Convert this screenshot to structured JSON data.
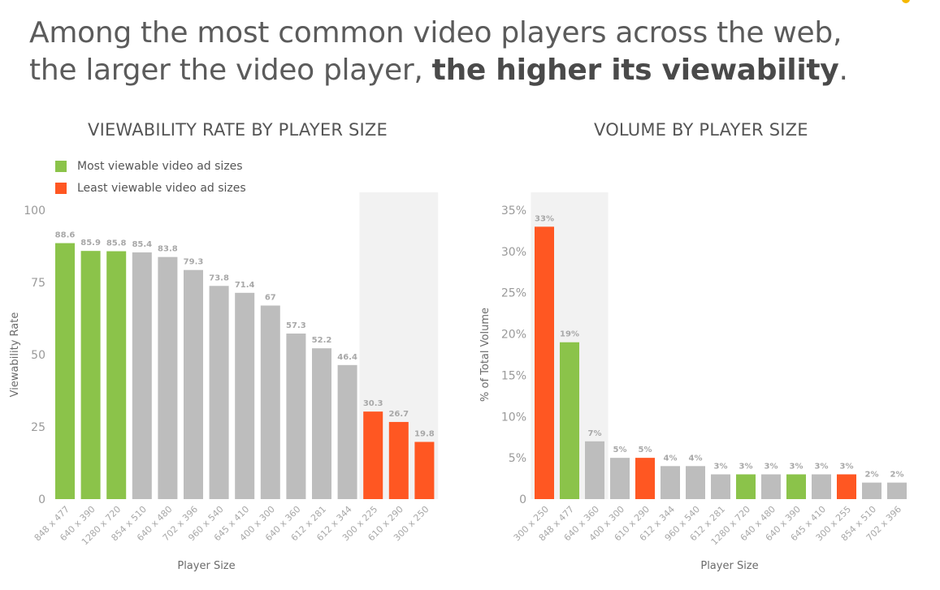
{
  "headline": {
    "line1": "Among the most common video players across the web,",
    "line2_prefix": "the larger the video player, ",
    "line2_bold": "the higher its viewability",
    "line2_suffix": "."
  },
  "legend": {
    "green_label": "Most viewable video ad sizes",
    "red_label": "Least viewable video ad sizes"
  },
  "colors": {
    "green": "#8bc34a",
    "red": "#ff5722",
    "gray": "#bdbdbd",
    "highlight_bg": "#f2f2f2"
  },
  "chart_data": [
    {
      "type": "bar",
      "title": "VIEWABILITY RATE BY PLAYER SIZE",
      "xlabel": "Player Size",
      "ylabel": "Viewability Rate",
      "ylim": [
        0,
        100
      ],
      "yticks": [
        "0",
        "25",
        "50",
        "75",
        "100"
      ],
      "categories": [
        "848 x 477",
        "640 x 390",
        "1280 x 720",
        "854 x 510",
        "640 x 480",
        "702 x 396",
        "960 x 540",
        "645 x 410",
        "400 x 300",
        "640 x 360",
        "612 x 281",
        "612 x 344",
        "300 x 225",
        "610 x 290",
        "300 x 250"
      ],
      "values": [
        88.6,
        85.9,
        85.8,
        85.4,
        83.8,
        79.3,
        73.8,
        71.4,
        67,
        57.3,
        52.2,
        46.4,
        30.3,
        26.7,
        19.8
      ],
      "value_labels": [
        "88.6",
        "85.9",
        "85.8",
        "85.4",
        "83.8",
        "79.3",
        "73.8",
        "71.4",
        "67",
        "57.3",
        "52.2",
        "46.4",
        "30.3",
        "26.7",
        "19.8"
      ],
      "bar_colors": [
        "green",
        "green",
        "green",
        "gray",
        "gray",
        "gray",
        "gray",
        "gray",
        "gray",
        "gray",
        "gray",
        "gray",
        "red",
        "red",
        "red"
      ],
      "highlight_categories": [
        "300 x 225",
        "610 x 290",
        "300 x 250"
      ],
      "grid": false
    },
    {
      "type": "bar",
      "title": "VOLUME BY PLAYER SIZE",
      "xlabel": "Player Size",
      "ylabel": "% of Total Volume",
      "ylim": [
        0,
        35
      ],
      "yticks": [
        "0",
        "5%",
        "10%",
        "15%",
        "20%",
        "25%",
        "30%",
        "35%"
      ],
      "categories": [
        "300 x 250",
        "848 x 477",
        "640 x 360",
        "400 x 300",
        "610 x 290",
        "612 x 344",
        "960 x 540",
        "612 x 281",
        "1280 x 720",
        "640 x 480",
        "640 x 390",
        "645 x 410",
        "300 x 255",
        "854 x 510",
        "702 x 396"
      ],
      "values": [
        33,
        19,
        7,
        5,
        5,
        4,
        4,
        3,
        3,
        3,
        3,
        3,
        3,
        2,
        2
      ],
      "value_labels": [
        "33%",
        "19%",
        "7%",
        "5%",
        "5%",
        "4%",
        "4%",
        "3%",
        "3%",
        "3%",
        "3%",
        "3%",
        "3%",
        "2%",
        "2%"
      ],
      "bar_colors": [
        "red",
        "green",
        "gray",
        "gray",
        "red",
        "gray",
        "gray",
        "gray",
        "green",
        "gray",
        "green",
        "gray",
        "red",
        "gray",
        "gray"
      ],
      "highlight_categories": [
        "300 x 250",
        "848 x 477",
        "640 x 360"
      ],
      "grid": false
    }
  ]
}
